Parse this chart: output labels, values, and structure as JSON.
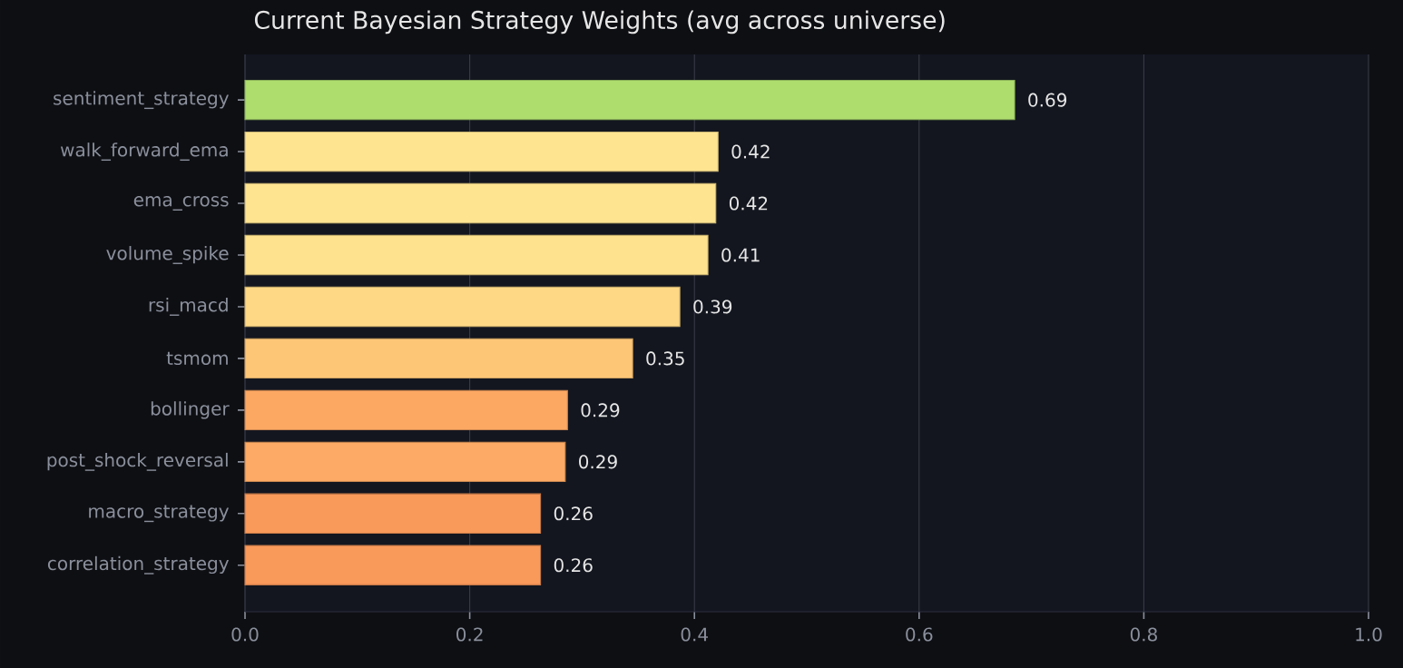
{
  "chart_data": {
    "type": "bar",
    "orientation": "horizontal",
    "title": "Current Bayesian Strategy Weights (avg across universe)",
    "categories": [
      "sentiment_strategy",
      "walk_forward_ema",
      "ema_cross",
      "volume_spike",
      "rsi_macd",
      "tsmom",
      "bollinger",
      "post_shock_reversal",
      "macro_strategy",
      "correlation_strategy"
    ],
    "values": [
      0.685,
      0.421,
      0.419,
      0.412,
      0.387,
      0.345,
      0.287,
      0.285,
      0.263,
      0.263
    ],
    "value_labels": [
      "0.69",
      "0.42",
      "0.42",
      "0.41",
      "0.39",
      "0.35",
      "0.29",
      "0.29",
      "0.26",
      "0.26"
    ],
    "colors": [
      "#aedd6e",
      "#fee491",
      "#fee491",
      "#fee28d",
      "#fed885",
      "#fdc677",
      "#fca863",
      "#fcaa65",
      "#f9995a",
      "#f9995a"
    ],
    "xlim": [
      0,
      1
    ],
    "xticks": [
      {
        "value": 0,
        "label": "0.0"
      },
      {
        "value": 0.2,
        "label": "0.2"
      },
      {
        "value": 0.4,
        "label": "0.4"
      },
      {
        "value": 0.6,
        "label": "0.6"
      },
      {
        "value": 0.8,
        "label": "0.8"
      },
      {
        "value": 1,
        "label": "1.0"
      }
    ],
    "grid": "x"
  }
}
